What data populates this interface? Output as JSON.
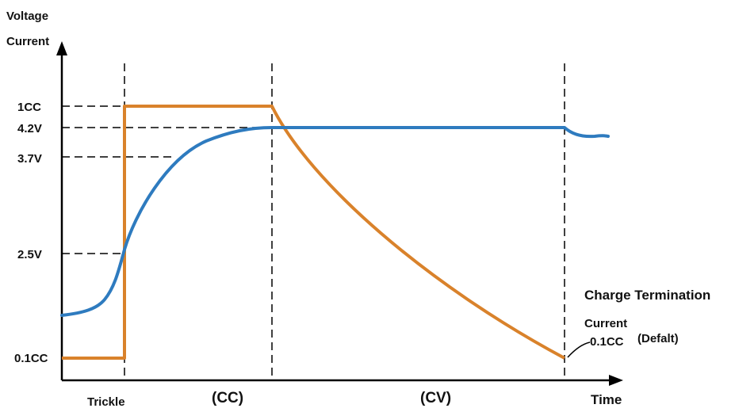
{
  "chart_data": {
    "type": "line",
    "y_axis_title_line1": "Voltage",
    "y_axis_title_line2": "Current",
    "x_axis_title": "Time",
    "y_ticks": [
      "1CC",
      "4.2V",
      "3.7V",
      "2.5V",
      "0.1CC"
    ],
    "phases": [
      "Trickle",
      "(CC)",
      "(CV)"
    ],
    "annotation": {
      "line1": "Charge Termination",
      "line2": "Current",
      "value": "0.1CC",
      "note": "(Defalt)"
    },
    "series": [
      {
        "color": "#d9822b"
      },
      {
        "color": "#2e7bbf"
      }
    ]
  }
}
